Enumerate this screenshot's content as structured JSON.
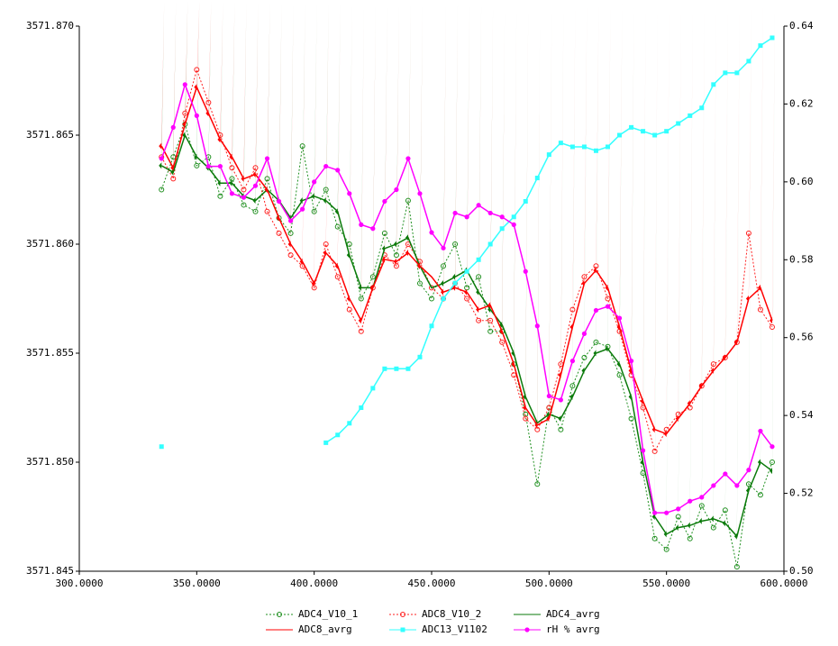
{
  "chart_data": {
    "type": "line",
    "x": [
      335,
      340,
      345,
      350,
      355,
      360,
      365,
      370,
      375,
      380,
      385,
      390,
      395,
      400,
      405,
      410,
      415,
      420,
      425,
      430,
      435,
      440,
      445,
      450,
      455,
      460,
      465,
      470,
      475,
      480,
      485,
      490,
      495,
      500,
      505,
      510,
      515,
      520,
      525,
      530,
      535,
      540,
      545,
      550,
      555,
      560,
      565,
      570,
      575,
      580,
      585,
      590,
      595
    ],
    "xlim": [
      300,
      600
    ],
    "xticks": [
      {
        "value": 300,
        "label": "300.0000"
      },
      {
        "value": 350,
        "label": "350.0000"
      },
      {
        "value": 400,
        "label": "400.0000"
      },
      {
        "value": 450,
        "label": "450.0000"
      },
      {
        "value": 500,
        "label": "500.0000"
      },
      {
        "value": 550,
        "label": "550.0000"
      },
      {
        "value": 600,
        "label": "600.0000"
      }
    ],
    "ylim": [
      3571.845,
      3571.87
    ],
    "yticks": [
      3571.845,
      {
        "value": 3571.85,
        "label": "3571.850"
      },
      3571.855,
      {
        "value": 3571.86,
        "label": "3571.860"
      },
      3571.865,
      {
        "value": 3571.87,
        "label": "3571.870"
      }
    ],
    "y2lim": [
      0.5,
      0.64
    ],
    "y2ticks": [
      {
        "value": 0.5,
        "label": "0.50"
      },
      0.52,
      0.54,
      0.56,
      0.58,
      {
        "value": 0.6,
        "label": "0.60"
      },
      0.62,
      0.64
    ],
    "grid": false,
    "legend": "bottom",
    "series": [
      {
        "name": "ADC4_V10_1",
        "color": "#1f8f1f",
        "marker": "open-circle",
        "dashed": true,
        "values": [
          3571.8625,
          3571.864,
          3571.8655,
          3571.8636,
          3571.864,
          3571.8622,
          3571.863,
          3571.8618,
          3571.8615,
          3571.863,
          3571.8612,
          3571.8605,
          3571.8645,
          3571.8615,
          3571.8625,
          3571.8608,
          3571.86,
          3571.8575,
          3571.8585,
          3571.8605,
          3571.8595,
          3571.862,
          3571.8582,
          3571.8575,
          3571.859,
          3571.86,
          3571.858,
          3571.8585,
          3571.856,
          3571.856,
          3571.8545,
          3571.8522,
          3571.849,
          3571.8525,
          3571.8515,
          3571.8535,
          3571.8548,
          3571.8555,
          3571.8553,
          3571.854,
          3571.852,
          3571.8495,
          3571.8465,
          3571.846,
          3571.8475,
          3571.8465,
          3571.848,
          3571.847,
          3571.8478,
          3571.8452,
          3571.849,
          3571.8485,
          3571.85
        ]
      },
      {
        "name": "ADC8_V10_2",
        "color": "#ff2020",
        "marker": "open-circle",
        "dashed": true,
        "values": [
          3571.864,
          3571.863,
          3571.866,
          3571.868,
          3571.8665,
          3571.865,
          3571.8635,
          3571.8625,
          3571.8635,
          3571.8615,
          3571.8605,
          3571.8595,
          3571.859,
          3571.858,
          3571.86,
          3571.8585,
          3571.857,
          3571.856,
          3571.858,
          3571.8595,
          3571.859,
          3571.86,
          3571.8592,
          3571.858,
          3571.8575,
          3571.8582,
          3571.8575,
          3571.8565,
          3571.8565,
          3571.8555,
          3571.854,
          3571.852,
          3571.8515,
          3571.8525,
          3571.8545,
          3571.857,
          3571.8585,
          3571.859,
          3571.8575,
          3571.856,
          3571.854,
          3571.8525,
          3571.8505,
          3571.8515,
          3571.8522,
          3571.8525,
          3571.8535,
          3571.8545,
          3571.8548,
          3571.8555,
          3571.8605,
          3571.857,
          3571.8562
        ]
      },
      {
        "name": "ADC4_avrg",
        "color": "#0a7a0a",
        "marker": "diamond",
        "dashed": false,
        "values": [
          3571.8636,
          3571.8633,
          3571.865,
          3571.864,
          3571.8635,
          3571.8628,
          3571.8628,
          3571.8622,
          3571.862,
          3571.8625,
          3571.862,
          3571.8612,
          3571.862,
          3571.8622,
          3571.862,
          3571.8615,
          3571.8595,
          3571.858,
          3571.858,
          3571.8598,
          3571.86,
          3571.8603,
          3571.859,
          3571.858,
          3571.8582,
          3571.8585,
          3571.8588,
          3571.8578,
          3571.857,
          3571.8563,
          3571.855,
          3571.853,
          3571.8518,
          3571.8522,
          3571.852,
          3571.853,
          3571.8542,
          3571.855,
          3571.8552,
          3571.8545,
          3571.853,
          3571.85,
          3571.8475,
          3571.8467,
          3571.847,
          3571.8471,
          3571.8473,
          3571.8474,
          3571.8472,
          3571.8466,
          3571.8487,
          3571.85,
          3571.8496
        ]
      },
      {
        "name": "ADC8_avrg",
        "color": "#ff0000",
        "marker": "diamond",
        "dashed": false,
        "values": [
          3571.8645,
          3571.8635,
          3571.8655,
          3571.8672,
          3571.866,
          3571.8648,
          3571.864,
          3571.863,
          3571.8632,
          3571.8625,
          3571.8612,
          3571.86,
          3571.8592,
          3571.8582,
          3571.8596,
          3571.859,
          3571.8575,
          3571.8565,
          3571.858,
          3571.8593,
          3571.8592,
          3571.8596,
          3571.859,
          3571.8585,
          3571.8578,
          3571.858,
          3571.8578,
          3571.857,
          3571.8572,
          3571.856,
          3571.8545,
          3571.8525,
          3571.8517,
          3571.852,
          3571.854,
          3571.8562,
          3571.8582,
          3571.8588,
          3571.858,
          3571.8562,
          3571.8542,
          3571.8528,
          3571.8515,
          3571.8513,
          3571.852,
          3571.8527,
          3571.8535,
          3571.8542,
          3571.8548,
          3571.8555,
          3571.8575,
          3571.858,
          3571.8565
        ]
      },
      {
        "name": "ADC13_V1102",
        "color": "#33ffff",
        "marker": "square",
        "dashed": false,
        "axis": "y2",
        "values": [
          0.532,
          null,
          null,
          null,
          null,
          null,
          null,
          null,
          null,
          null,
          null,
          null,
          null,
          null,
          0.533,
          0.535,
          0.538,
          0.542,
          0.547,
          0.552,
          0.552,
          0.552,
          0.555,
          0.563,
          0.57,
          0.574,
          0.577,
          0.58,
          0.584,
          0.588,
          0.591,
          0.595,
          0.601,
          0.607,
          0.61,
          0.609,
          0.609,
          0.608,
          0.609,
          0.612,
          0.614,
          0.613,
          0.612,
          0.613,
          0.615,
          0.617,
          0.619,
          0.625,
          0.628,
          0.628,
          0.631,
          0.635,
          0.637
        ]
      },
      {
        "name": "rH % avrg",
        "color": "#ff00ff",
        "marker": "circle",
        "dashed": false,
        "axis": "y2",
        "values": [
          0.606,
          0.614,
          0.625,
          0.617,
          0.604,
          0.604,
          0.597,
          0.596,
          0.599,
          0.606,
          0.595,
          0.59,
          0.593,
          0.6,
          0.604,
          0.603,
          0.597,
          0.589,
          0.588,
          0.595,
          0.598,
          0.606,
          0.597,
          0.587,
          0.583,
          0.592,
          0.591,
          0.594,
          0.592,
          0.591,
          0.589,
          0.577,
          0.563,
          0.545,
          0.544,
          0.554,
          0.561,
          0.567,
          0.568,
          0.565,
          0.554,
          0.531,
          0.515,
          0.515,
          0.516,
          0.518,
          0.519,
          0.522,
          0.525,
          0.522,
          0.526,
          0.536,
          0.532
        ]
      }
    ]
  }
}
